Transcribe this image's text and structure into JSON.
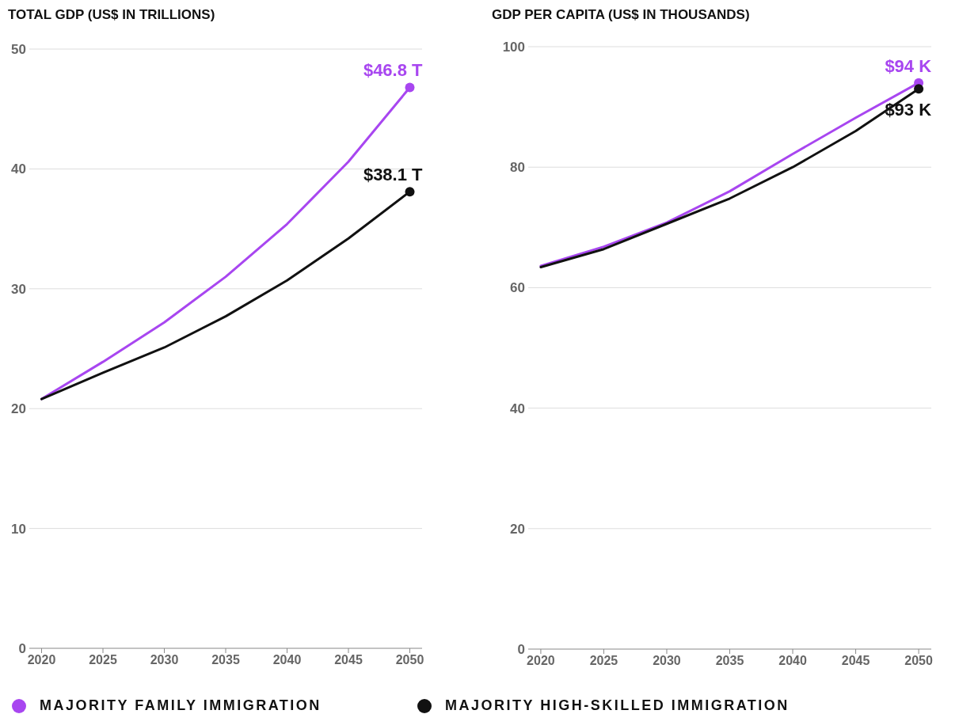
{
  "chart_data": [
    {
      "type": "line",
      "title": "TOTAL GDP (US$ IN TRILLIONS)",
      "x": [
        2020,
        2025,
        2030,
        2035,
        2040,
        2045,
        2050
      ],
      "xlim": [
        2019,
        2051
      ],
      "xticks": [
        2020,
        2025,
        2030,
        2035,
        2040,
        2045,
        2050
      ],
      "ylim": [
        0,
        50
      ],
      "yticks": [
        0,
        10,
        20,
        30,
        40,
        50
      ],
      "grid": "y",
      "legend": "bottom",
      "series": [
        {
          "name": "MAJORITY FAMILY IMMIGRATION",
          "color": "#a846f0",
          "values": [
            20.8,
            23.9,
            27.2,
            31.0,
            35.4,
            40.6,
            46.8
          ],
          "value_labels": [
            null,
            null,
            null,
            null,
            null,
            null,
            "$46.8 T"
          ]
        },
        {
          "name": "MAJORITY HIGH-SKILLED IMMIGRATION",
          "color": "#111111",
          "values": [
            20.8,
            23.0,
            25.1,
            27.7,
            30.7,
            34.2,
            38.1
          ],
          "value_labels": [
            null,
            null,
            null,
            null,
            null,
            null,
            "$38.1 T"
          ]
        }
      ]
    },
    {
      "type": "line",
      "title": "GDP PER CAPITA (US$ IN THOUSANDS)",
      "x": [
        2020,
        2025,
        2030,
        2035,
        2040,
        2045,
        2050
      ],
      "xlim": [
        2019,
        2051
      ],
      "xticks": [
        2020,
        2025,
        2030,
        2035,
        2040,
        2045,
        2050
      ],
      "ylim": [
        0,
        100
      ],
      "yticks": [
        0,
        20,
        40,
        60,
        80,
        100
      ],
      "grid": "y",
      "series": [
        {
          "color": "#a846f0",
          "values": [
            63.6,
            66.8,
            70.8,
            76.0,
            82.2,
            88.2,
            94
          ],
          "value_labels": [
            null,
            null,
            null,
            null,
            null,
            null,
            "$94 K"
          ]
        },
        {
          "color": "#111111",
          "values": [
            63.4,
            66.4,
            70.6,
            74.8,
            80.0,
            86.0,
            93
          ],
          "value_labels": [
            null,
            null,
            null,
            null,
            null,
            null,
            "$93 K"
          ]
        }
      ]
    }
  ]
}
